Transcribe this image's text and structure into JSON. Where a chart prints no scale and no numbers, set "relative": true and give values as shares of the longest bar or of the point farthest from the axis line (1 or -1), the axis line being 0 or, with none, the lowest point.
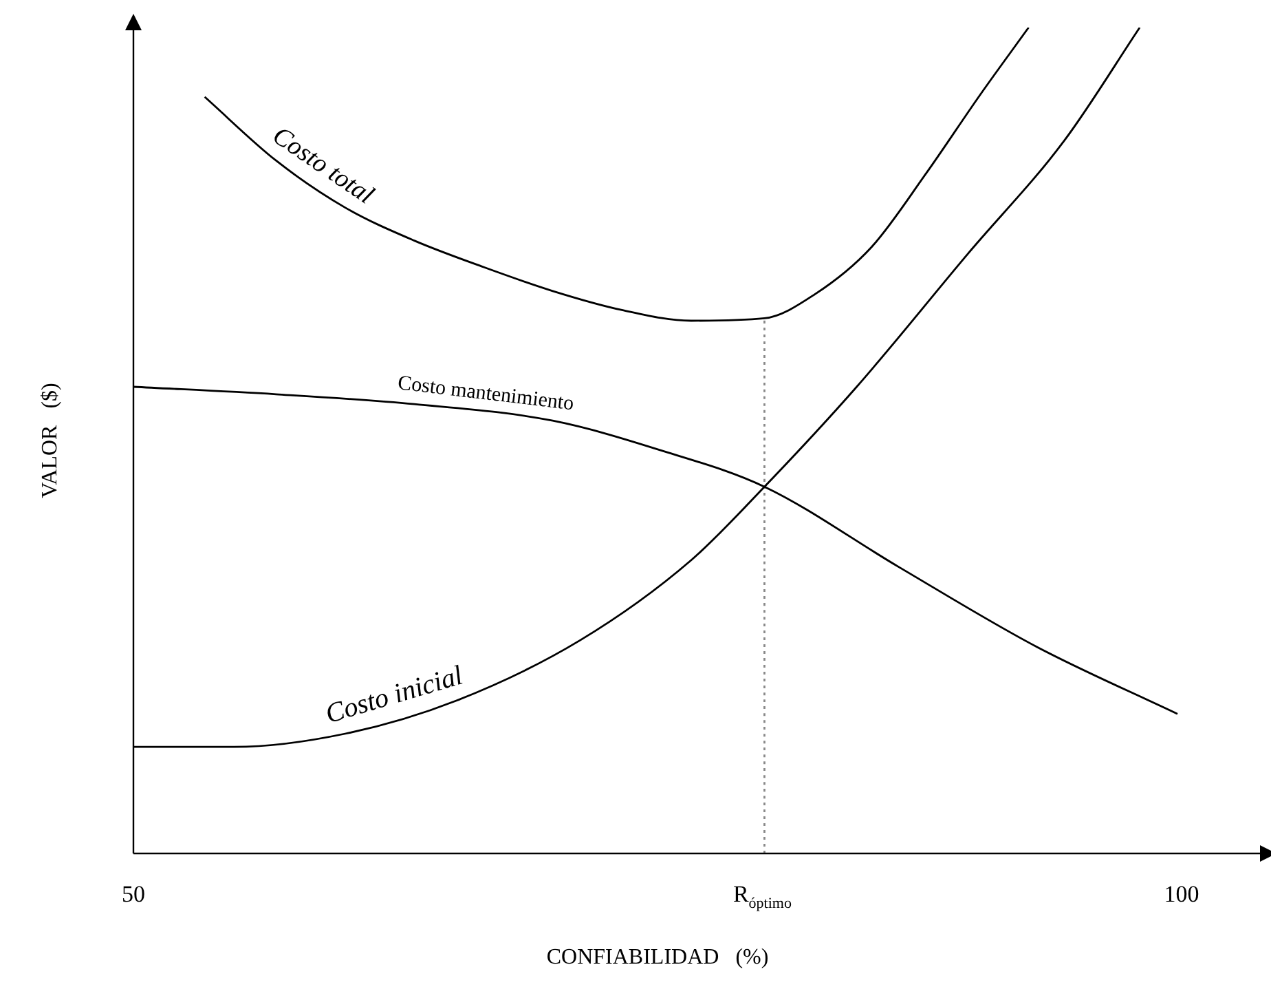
{
  "chart_data": {
    "type": "line",
    "relative": true,
    "xlabel": "CONFIABILIDAD   (%)",
    "ylabel": "VALOR   ($)",
    "xlim": [
      50,
      104
    ],
    "xticks": [
      50,
      {
        "value": 80,
        "label": "R$_{óptimo}$"
      },
      100
    ],
    "grid": false,
    "legend": false,
    "marker": "none",
    "tick_labels": "x",
    "series": [
      {
        "name": "Costo total",
        "color": "#000000",
        "x": [
          53.4,
          56.8,
          60.1,
          63.4,
          66.7,
          70.0,
          73.3,
          76.6,
          80.1,
          82.5,
          85.2,
          87.8,
          90.4,
          92.7
        ],
        "values": [
          0.916,
          0.839,
          0.782,
          0.742,
          0.71,
          0.681,
          0.658,
          0.645,
          0.648,
          0.677,
          0.734,
          0.823,
          0.919,
          1.0
        ]
      },
      {
        "name": "Costo mantenimiento",
        "color": "#000000",
        "x": [
          50,
          56.8,
          63.4,
          70.0,
          75.3,
          80.1,
          86.5,
          93.1,
          99.8
        ],
        "values": [
          0.565,
          0.556,
          0.544,
          0.524,
          0.487,
          0.444,
          0.347,
          0.25,
          0.169
        ]
      },
      {
        "name": "Costo inicial",
        "color": "#000000",
        "x": [
          50,
          54.8,
          60.1,
          65.4,
          71.3,
          76.6,
          80.1,
          84.5,
          89.8,
          94.4,
          98.0
        ],
        "values": [
          0.129,
          0.129,
          0.145,
          0.185,
          0.258,
          0.355,
          0.444,
          0.565,
          0.726,
          0.863,
          1.0
        ]
      },
      {
        "color": "#888888",
        "line_style": "dotted",
        "x": [
          80.1,
          80.1
        ],
        "values": [
          0,
          0.648
        ]
      }
    ]
  }
}
